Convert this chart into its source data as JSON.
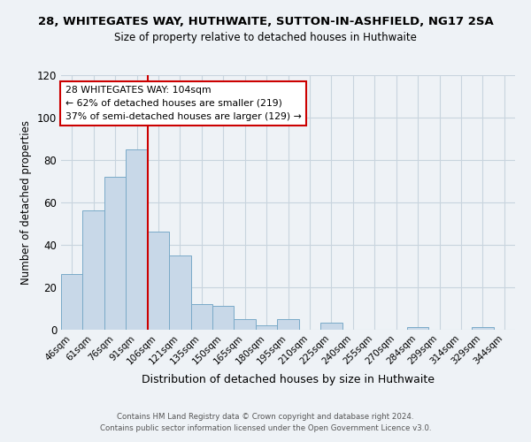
{
  "title1": "28, WHITEGATES WAY, HUTHWAITE, SUTTON-IN-ASHFIELD, NG17 2SA",
  "title2": "Size of property relative to detached houses in Huthwaite",
  "xlabel": "Distribution of detached houses by size in Huthwaite",
  "ylabel": "Number of detached properties",
  "bin_labels": [
    "46sqm",
    "61sqm",
    "76sqm",
    "91sqm",
    "106sqm",
    "121sqm",
    "135sqm",
    "150sqm",
    "165sqm",
    "180sqm",
    "195sqm",
    "210sqm",
    "225sqm",
    "240sqm",
    "255sqm",
    "270sqm",
    "284sqm",
    "299sqm",
    "314sqm",
    "329sqm",
    "344sqm"
  ],
  "bar_heights": [
    26,
    56,
    72,
    85,
    46,
    35,
    12,
    11,
    5,
    2,
    5,
    0,
    3,
    0,
    0,
    0,
    1,
    0,
    0,
    1,
    0
  ],
  "bar_color": "#c8d8e8",
  "bar_edgecolor": "#7aaac8",
  "vline_color": "#cc0000",
  "annotation_box_text": "28 WHITEGATES WAY: 104sqm\n← 62% of detached houses are smaller (219)\n37% of semi-detached houses are larger (129) →",
  "annotation_box_color": "#cc0000",
  "ylim": [
    0,
    120
  ],
  "yticks": [
    0,
    20,
    40,
    60,
    80,
    100,
    120
  ],
  "footer1": "Contains HM Land Registry data © Crown copyright and database right 2024.",
  "footer2": "Contains public sector information licensed under the Open Government Licence v3.0.",
  "bg_color": "#eef2f6",
  "grid_color": "#c8d4de"
}
